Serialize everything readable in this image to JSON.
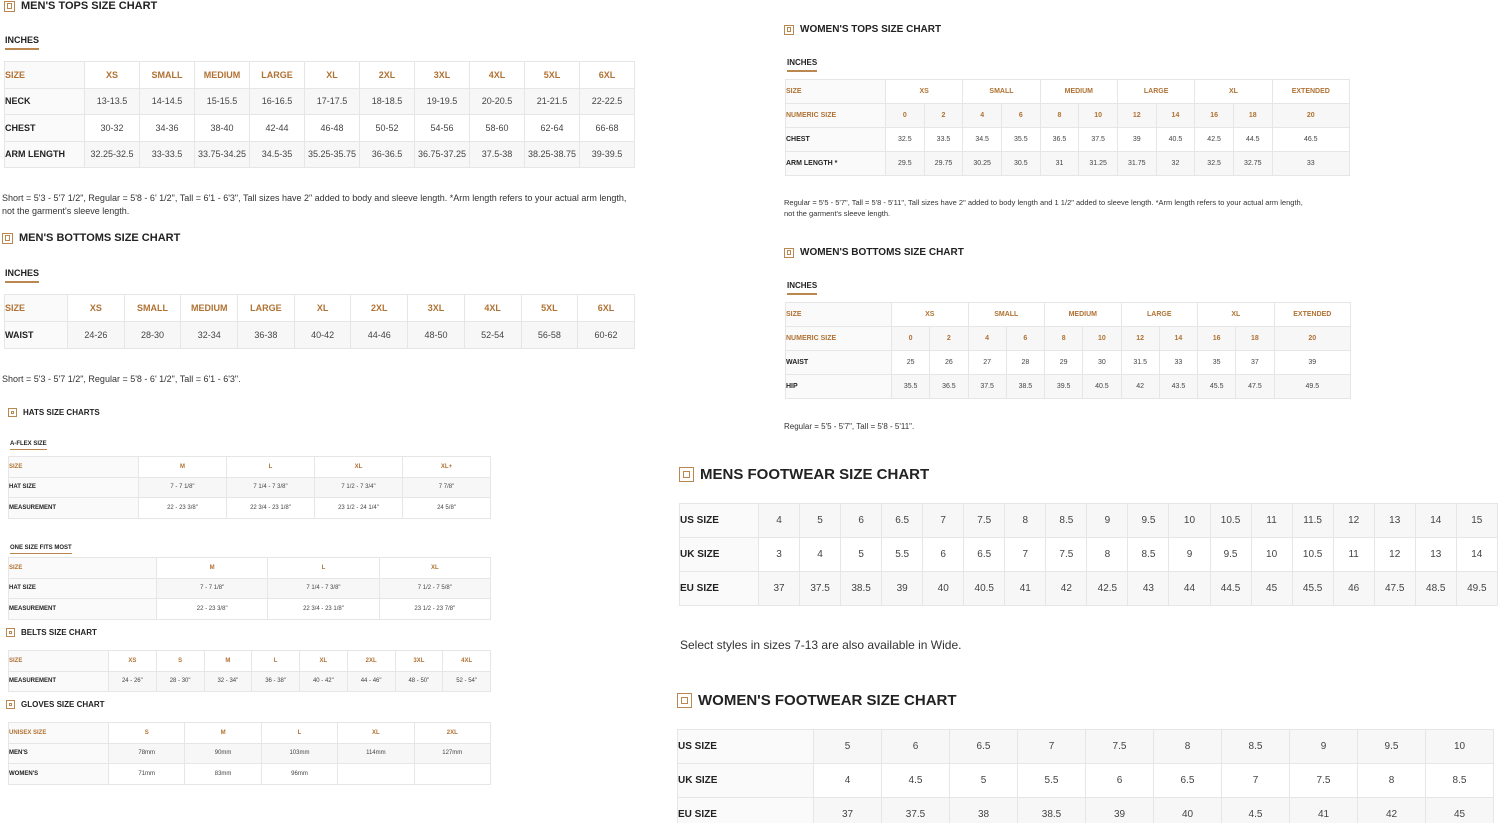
{
  "mens_tops": {
    "title": "MEN'S TOPS SIZE CHART",
    "unit": "INCHES",
    "header": [
      "SIZE",
      "XS",
      "SMALL",
      "MEDIUM",
      "LARGE",
      "XL",
      "2XL",
      "3XL",
      "4XL",
      "5XL",
      "6XL"
    ],
    "rows": [
      [
        "NECK",
        "13-13.5",
        "14-14.5",
        "15-15.5",
        "16-16.5",
        "17-17.5",
        "18-18.5",
        "19-19.5",
        "20-20.5",
        "21-21.5",
        "22-22.5"
      ],
      [
        "CHEST",
        "30-32",
        "34-36",
        "38-40",
        "42-44",
        "46-48",
        "50-52",
        "54-56",
        "58-60",
        "62-64",
        "66-68"
      ],
      [
        "ARM LENGTH",
        "32.25-32.5",
        "33-33.5",
        "33.75-34.25",
        "34.5-35",
        "35.25-35.75",
        "36-36.5",
        "36.75-37.25",
        "37.5-38",
        "38.25-38.75",
        "39-39.5"
      ]
    ],
    "note_line1": "Short = 5'3 - 5'7 1/2\", Regular = 5'8 - 6' 1/2\", Tall = 6'1 - 6'3\", Tall sizes have 2\" added to body and sleeve length. *Arm length refers to your actual arm length,",
    "note_line2": "not the garment's sleeve length."
  },
  "mens_bottoms": {
    "title": "MEN'S BOTTOMS SIZE CHART",
    "unit": "INCHES",
    "header": [
      "SIZE",
      "XS",
      "SMALL",
      "MEDIUM",
      "LARGE",
      "XL",
      "2XL",
      "3XL",
      "4XL",
      "5XL",
      "6XL"
    ],
    "rows": [
      [
        "WAIST",
        "24-26",
        "28-30",
        "32-34",
        "36-38",
        "40-42",
        "44-46",
        "48-50",
        "52-54",
        "56-58",
        "60-62"
      ]
    ],
    "note": "Short = 5'3 - 5'7 1/2\", Regular = 5'8 - 6' 1/2\", Tall = 6'1 - 6'3\"."
  },
  "hats": {
    "title": "HATS SIZE CHARTS",
    "aflex": {
      "label": "A-FLEX SIZE",
      "header": [
        "SIZE",
        "M",
        "L",
        "XL",
        "XL+"
      ],
      "rows": [
        [
          "HAT SIZE",
          "7 - 7 1/8\"",
          "7 1/4 - 7 3/8\"",
          "7 1/2 - 7 3/4\"",
          "7 7/8\""
        ],
        [
          "MEASUREMENT",
          "22 - 23 3/8\"",
          "22 3/4 - 23 1/8\"",
          "23 1/2 - 24 1/4\"",
          "24 5/8\""
        ]
      ]
    },
    "osfm": {
      "label": "ONE SIZE FITS MOST",
      "header": [
        "SIZE",
        "M",
        "L",
        "XL"
      ],
      "rows": [
        [
          "HAT SIZE",
          "7 - 7 1/8\"",
          "7 1/4 - 7 3/8\"",
          "7 1/2 - 7 5/8\""
        ],
        [
          "MEASUREMENT",
          "22 - 23 3/8\"",
          "22 3/4 - 23 1/8\"",
          "23 1/2 - 23 7/8\""
        ]
      ]
    }
  },
  "belts": {
    "title": "BELTS SIZE CHART",
    "header": [
      "SIZE",
      "XS",
      "S",
      "M",
      "L",
      "XL",
      "2XL",
      "3XL",
      "4XL"
    ],
    "rows": [
      [
        "MEASUREMENT",
        "24 - 26\"",
        "28 - 30\"",
        "32 - 34\"",
        "36 - 38\"",
        "40 - 42\"",
        "44 - 46\"",
        "48 - 50\"",
        "52 - 54\""
      ]
    ]
  },
  "gloves": {
    "title": "GLOVES SIZE CHART",
    "header": [
      "UNISEX SIZE",
      "S",
      "M",
      "L",
      "XL",
      "2XL"
    ],
    "rows": [
      [
        "MEN'S",
        "78mm",
        "90mm",
        "103mm",
        "114mm",
        "127mm"
      ],
      [
        "WOMEN'S",
        "71mm",
        "83mm",
        "96mm",
        "",
        ""
      ]
    ]
  },
  "womens_tops": {
    "title": "WOMEN'S TOPS SIZE CHART",
    "unit": "INCHES",
    "groups": [
      "XS",
      "SMALL",
      "MEDIUM",
      "LARGE",
      "XL",
      "EXTENDED"
    ],
    "size_label": "SIZE",
    "numeric_label": "NUMERIC SIZE",
    "numeric": [
      "0",
      "2",
      "4",
      "6",
      "8",
      "10",
      "12",
      "14",
      "16",
      "18",
      "20"
    ],
    "rows": [
      [
        "CHEST",
        "32.5",
        "33.5",
        "34.5",
        "35.5",
        "36.5",
        "37.5",
        "39",
        "40.5",
        "42.5",
        "44.5",
        "46.5"
      ],
      [
        "ARM LENGTH *",
        "29.5",
        "29.75",
        "30.25",
        "30.5",
        "31",
        "31.25",
        "31.75",
        "32",
        "32.5",
        "32.75",
        "33"
      ]
    ],
    "note_line1": "Regular = 5'5 - 5'7\", Tall = 5'8 - 5'11\", Tall sizes have 2\" added to body length and 1 1/2\" added to sleeve length. *Arm length refers to your actual arm length,",
    "note_line2": "not the garment's sleeve length."
  },
  "womens_bottoms": {
    "title": "WOMEN'S BOTTOMS SIZE CHART",
    "unit": "INCHES",
    "groups": [
      "XS",
      "SMALL",
      "MEDIUM",
      "LARGE",
      "XL",
      "EXTENDED"
    ],
    "size_label": "SIZE",
    "numeric_label": "NUMERIC SIZE",
    "numeric": [
      "0",
      "2",
      "4",
      "6",
      "8",
      "10",
      "12",
      "14",
      "16",
      "18",
      "20"
    ],
    "rows": [
      [
        "WAIST",
        "25",
        "26",
        "27",
        "28",
        "29",
        "30",
        "31.5",
        "33",
        "35",
        "37",
        "39"
      ],
      [
        "HIP",
        "35.5",
        "36.5",
        "37.5",
        "38.5",
        "39.5",
        "40.5",
        "42",
        "43.5",
        "45.5",
        "47.5",
        "49.5"
      ]
    ],
    "note": "Regular = 5'5 - 5'7\", Tall = 5'8 - 5'11\"."
  },
  "mens_footwear": {
    "title": "MENS FOOTWEAR SIZE CHART",
    "rows": [
      [
        "US SIZE",
        "4",
        "5",
        "6",
        "6.5",
        "7",
        "7.5",
        "8",
        "8.5",
        "9",
        "9.5",
        "10",
        "10.5",
        "11",
        "11.5",
        "12",
        "13",
        "14",
        "15"
      ],
      [
        "UK SIZE",
        "3",
        "4",
        "5",
        "5.5",
        "6",
        "6.5",
        "7",
        "7.5",
        "8",
        "8.5",
        "9",
        "9.5",
        "10",
        "10.5",
        "11",
        "12",
        "13",
        "14"
      ],
      [
        "EU SIZE",
        "37",
        "37.5",
        "38.5",
        "39",
        "40",
        "40.5",
        "41",
        "42",
        "42.5",
        "43",
        "44",
        "44.5",
        "45",
        "45.5",
        "46",
        "47.5",
        "48.5",
        "49.5"
      ]
    ],
    "note": "Select styles in sizes 7-13 are also available in Wide."
  },
  "womens_footwear": {
    "title": "WOMEN'S FOOTWEAR SIZE CHART",
    "rows": [
      [
        "US SIZE",
        "5",
        "6",
        "6.5",
        "7",
        "7.5",
        "8",
        "8.5",
        "9",
        "9.5",
        "10"
      ],
      [
        "UK SIZE",
        "4",
        "4.5",
        "5",
        "5.5",
        "6",
        "6.5",
        "7",
        "7.5",
        "8",
        "8.5"
      ],
      [
        "EU SIZE",
        "37",
        "37.5",
        "38",
        "38.5",
        "39",
        "40",
        "4.5",
        "41",
        "42",
        "45"
      ]
    ]
  }
}
